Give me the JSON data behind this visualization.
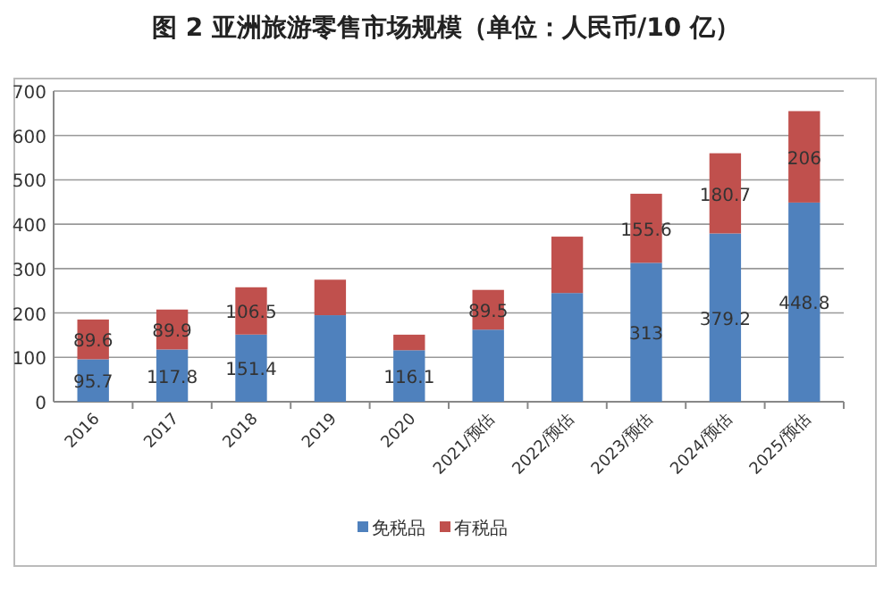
{
  "chart_data": {
    "type": "bar",
    "title": "图 2 亚洲旅游零售市场规模（单位：人民币/10 亿）",
    "stacked": true,
    "grid": "y",
    "legend": "bottom",
    "categories": [
      "2016",
      "2017",
      "2018",
      "2019",
      "2020",
      "2021/预估",
      "2022/预估",
      "2023/预估",
      "2024/预估",
      "2025/预估"
    ],
    "ylim": [
      0,
      700
    ],
    "yticks": [
      0,
      100,
      200,
      300,
      400,
      500,
      600,
      700
    ],
    "series": [
      {
        "name": "免税品",
        "color": "#4f81bd",
        "values": [
          95.7,
          117.8,
          151.4,
          195,
          116.1,
          162.5,
          245,
          313,
          379.2,
          448.8
        ],
        "value_labels": [
          "95.7",
          "117.8",
          "151.4",
          null,
          "116.1",
          null,
          null,
          "313",
          "379.2",
          "448.8"
        ]
      },
      {
        "name": "有税品",
        "color": "#c0504d",
        "values": [
          89.6,
          89.9,
          106.5,
          80,
          35,
          89.5,
          127,
          155.6,
          180.7,
          206
        ],
        "value_labels": [
          "89.6",
          "89.9",
          "106.5",
          null,
          null,
          "89.5",
          null,
          "155.6",
          "180.7",
          "206"
        ]
      }
    ]
  }
}
